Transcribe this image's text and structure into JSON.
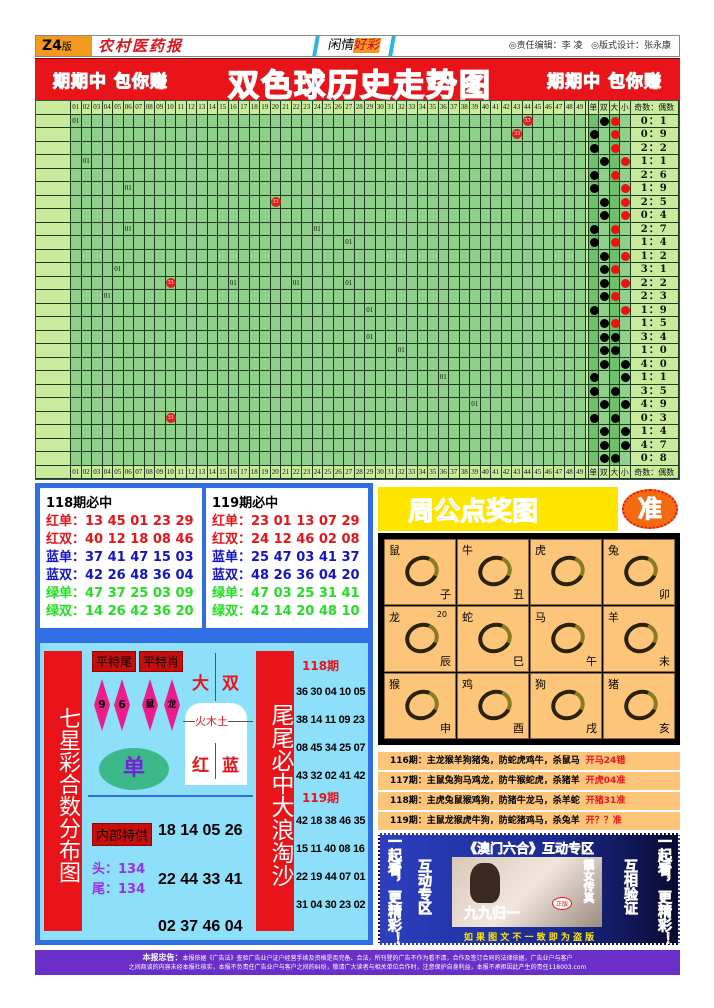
{
  "header": {
    "edition": "Z4",
    "edition_suffix": "版",
    "paper_name": "农村医药报",
    "column_a": "闲情",
    "column_b": "好彩",
    "editor": "◎责任编辑：李 凌",
    "designer": "◎版式设计：张永康"
  },
  "banner": {
    "left_slogan": "期期中 包你赚",
    "title": "双色球历史走势图",
    "right_slogan": "期期中 包你赚"
  },
  "colors": {
    "banner_red": "#e8141a",
    "title_blue": "#2a6fe0",
    "grid_green": "#8fd18a",
    "ball_red": "#e21b1b",
    "panel_blue": "#2f6fe3",
    "zodiac_bg": "#fdc57a",
    "footer_purple": "#6a2fc9"
  },
  "chart": {
    "number_headers": [
      "01",
      "02",
      "03",
      "04",
      "05",
      "06",
      "07",
      "08",
      "09",
      "10",
      "11",
      "12",
      "13",
      "14",
      "15",
      "16",
      "17",
      "18",
      "19",
      "20",
      "21",
      "22",
      "23",
      "24",
      "25",
      "26",
      "27",
      "28",
      "29",
      "30",
      "31",
      "32",
      "33",
      "34",
      "35",
      "36",
      "37",
      "38",
      "39",
      "40",
      "41",
      "42",
      "43",
      "44",
      "45",
      "46",
      "47",
      "48",
      "49"
    ],
    "attr_headers": [
      "单",
      "双",
      "大",
      "小"
    ],
    "ratio_header": "奇数：偶数",
    "rows": [
      {
        "marks": [
          {
            "col": 1,
            "text": "01",
            "type": "text"
          },
          {
            "col": 44,
            "text": "33",
            "type": "ball"
          }
        ],
        "attrs": [
          "",
          "black",
          "red",
          ""
        ],
        "ratio": "0：1"
      },
      {
        "marks": [
          {
            "col": 43,
            "text": "33",
            "type": "ball"
          }
        ],
        "attrs": [
          "black",
          "",
          "red",
          ""
        ],
        "ratio": "0：9"
      },
      {
        "marks": [],
        "attrs": [
          "black",
          "",
          "red",
          ""
        ],
        "ratio": "2：2"
      },
      {
        "marks": [
          {
            "col": 2,
            "text": "01",
            "type": "text"
          }
        ],
        "attrs": [
          "",
          "black",
          "",
          "red"
        ],
        "ratio": "1：1"
      },
      {
        "marks": [],
        "attrs": [
          "black",
          "",
          "red",
          ""
        ],
        "ratio": "2：6"
      },
      {
        "marks": [
          {
            "col": 6,
            "text": "01",
            "type": "text"
          }
        ],
        "attrs": [
          "black",
          "",
          "",
          "red"
        ],
        "ratio": "1：9"
      },
      {
        "marks": [
          {
            "col": 20,
            "text": "33",
            "type": "ball"
          }
        ],
        "attrs": [
          "",
          "black",
          "",
          "red"
        ],
        "ratio": "2：5"
      },
      {
        "marks": [],
        "attrs": [
          "",
          "black",
          "",
          "red"
        ],
        "ratio": "0：4"
      },
      {
        "marks": [
          {
            "col": 6,
            "text": "01",
            "type": "text"
          },
          {
            "col": 24,
            "text": "01",
            "type": "text"
          }
        ],
        "attrs": [
          "black",
          "",
          "red",
          ""
        ],
        "ratio": "2：7"
      },
      {
        "marks": [
          {
            "col": 27,
            "text": "01",
            "type": "text"
          }
        ],
        "attrs": [
          "black",
          "",
          "red",
          ""
        ],
        "ratio": "1：4"
      },
      {
        "marks": [],
        "attrs": [
          "",
          "black",
          "",
          "red"
        ],
        "ratio": "1：2"
      },
      {
        "marks": [
          {
            "col": 5,
            "text": "01",
            "type": "text"
          }
        ],
        "attrs": [
          "",
          "black",
          "red",
          ""
        ],
        "ratio": "3：1"
      },
      {
        "marks": [
          {
            "col": 10,
            "text": "33",
            "type": "ball"
          },
          {
            "col": 16,
            "text": "01",
            "type": "text"
          },
          {
            "col": 22,
            "text": "01",
            "type": "text"
          },
          {
            "col": 27,
            "text": "01",
            "type": "text"
          }
        ],
        "attrs": [
          "",
          "black",
          "",
          "red"
        ],
        "ratio": "2：2"
      },
      {
        "marks": [
          {
            "col": 4,
            "text": "01",
            "type": "text"
          }
        ],
        "attrs": [
          "",
          "black",
          "red",
          ""
        ],
        "ratio": "2：3"
      },
      {
        "marks": [
          {
            "col": 29,
            "text": "01",
            "type": "text"
          }
        ],
        "attrs": [
          "black",
          "",
          "",
          "red"
        ],
        "ratio": "1：9"
      },
      {
        "marks": [],
        "attrs": [
          "",
          "black",
          "red",
          ""
        ],
        "ratio": "1：5"
      },
      {
        "marks": [
          {
            "col": 29,
            "text": "01",
            "type": "text"
          }
        ],
        "attrs": [
          "",
          "black",
          "black",
          ""
        ],
        "ratio": "3：4"
      },
      {
        "marks": [
          {
            "col": 32,
            "text": "01",
            "type": "text"
          }
        ],
        "attrs": [
          "",
          "black",
          "black",
          ""
        ],
        "ratio": "1：0"
      },
      {
        "marks": [],
        "attrs": [
          "",
          "black",
          "",
          "black"
        ],
        "ratio": "4：0"
      },
      {
        "marks": [
          {
            "col": 36,
            "text": "01",
            "type": "text"
          }
        ],
        "attrs": [
          "black",
          "",
          "",
          "black"
        ],
        "ratio": "1：1"
      },
      {
        "marks": [],
        "attrs": [
          "black",
          "",
          "black",
          ""
        ],
        "ratio": "3：5"
      },
      {
        "marks": [
          {
            "col": 39,
            "text": "01",
            "type": "text"
          }
        ],
        "attrs": [
          "",
          "black",
          "",
          "black"
        ],
        "ratio": "4：9"
      },
      {
        "marks": [
          {
            "col": 10,
            "text": "33",
            "type": "ball"
          }
        ],
        "attrs": [
          "black",
          "",
          "black",
          ""
        ],
        "ratio": "0：3"
      },
      {
        "marks": [],
        "attrs": [
          "",
          "black",
          "",
          "black"
        ],
        "ratio": "1：4"
      },
      {
        "marks": [],
        "attrs": [
          "",
          "black",
          "",
          "black"
        ],
        "ratio": "4：7"
      },
      {
        "marks": [],
        "attrs": [
          "",
          "black",
          "black",
          ""
        ],
        "ratio": "0：8"
      }
    ]
  },
  "picks": [
    {
      "title": "118期必中",
      "rows": [
        {
          "label": "红单：",
          "nums": "13 45 01 23 29",
          "color": "#e8141a"
        },
        {
          "label": "红双：",
          "nums": "40 12 18 08 46",
          "color": "#e8141a"
        },
        {
          "label": "蓝单：",
          "nums": "37 41 47 15 03",
          "color": "#1414c8"
        },
        {
          "label": "蓝双：",
          "nums": "42 26 48 36 04",
          "color": "#1414c8"
        },
        {
          "label": "绿单：",
          "nums": "47 37 25 03 09",
          "color": "#22e022"
        },
        {
          "label": "绿双：",
          "nums": "14 26 42 36 20",
          "color": "#22e022"
        }
      ]
    },
    {
      "title": "119期必中",
      "rows": [
        {
          "label": "红单：",
          "nums": "23 01 13 07 29",
          "color": "#e8141a"
        },
        {
          "label": "红双：",
          "nums": "24 12 46 02 08",
          "color": "#e8141a"
        },
        {
          "label": "蓝单：",
          "nums": "25 47 03 41 37",
          "color": "#1414c8"
        },
        {
          "label": "蓝双：",
          "nums": "48 26 36 04 20",
          "color": "#1414c8"
        },
        {
          "label": "绿单：",
          "nums": "47 03 25 31 41",
          "color": "#22e022"
        },
        {
          "label": "绿双：",
          "nums": "42 14 20 48 10",
          "color": "#22e022"
        }
      ]
    }
  ],
  "qixing": {
    "title": "七星彩合数分布图",
    "tag_tail": "平特尾",
    "tag_zodiac": "平特肖",
    "tails": [
      "9",
      "6"
    ],
    "zodiacs": [
      "鼠",
      "龙"
    ],
    "big": "大",
    "double": "双",
    "elements": "火木土",
    "red": "红",
    "blue": "蓝",
    "single": "单",
    "inside_tag": "内部特供",
    "inside_nums": "18 14 05 26",
    "head_label": "头：",
    "head_val": "134",
    "tail_label": "尾：",
    "tail_val": "134",
    "nums2": "22 44 33 41",
    "nums3": "02 37 46 04"
  },
  "weiwei": {
    "title": "尾尾必中大浪淘沙",
    "p118": "118期",
    "p118_rows": [
      "36 30 04 10 05",
      "38 14 11 09 23",
      "08 45 34 25 07",
      "43 32 02 41 42"
    ],
    "p119": "119期",
    "p119_rows": [
      "42 18 38 46 35",
      "15 11 40 08 16",
      "22 19 44 07 01",
      "31 04 30 23 02"
    ]
  },
  "zhougong": {
    "title": "周公点奖图",
    "badge": "准",
    "cells": [
      {
        "name": "鼠",
        "branch": "子",
        "num": ""
      },
      {
        "name": "牛",
        "branch": "丑",
        "num": ""
      },
      {
        "name": "虎",
        "branch": "",
        "num": ""
      },
      {
        "name": "兔",
        "branch": "卯",
        "num": ""
      },
      {
        "name": "龙",
        "branch": "辰",
        "num": "20"
      },
      {
        "name": "蛇",
        "branch": "巳",
        "num": ""
      },
      {
        "name": "马",
        "branch": "午",
        "num": ""
      },
      {
        "name": "羊",
        "branch": "未",
        "num": ""
      },
      {
        "name": "猴",
        "branch": "申",
        "num": ""
      },
      {
        "name": "鸡",
        "branch": "酉",
        "num": ""
      },
      {
        "name": "狗",
        "branch": "戌",
        "num": ""
      },
      {
        "name": "猪",
        "branch": "亥",
        "num": ""
      }
    ]
  },
  "predictions": [
    {
      "text": "116期：主龙猴羊狗猪兔，防蛇虎鸡牛，杀鼠马",
      "result": "开马24错"
    },
    {
      "text": "117期：主鼠兔狗马鸡龙，防牛猴蛇虎，杀猪羊",
      "result": "开虎04准"
    },
    {
      "text": "118期：主虎兔鼠猴鸡狗，防猪牛龙马，杀羊蛇",
      "result": "开猪31准"
    },
    {
      "text": "119期：主鼠龙猴虎牛狗，防蛇猪鸡马，杀兔羊",
      "result": "开？？准"
    }
  ],
  "ad": {
    "title": "《澳门六合》互动专区",
    "left_outer": "一起看，更精彩！",
    "left_inner": "互动专区",
    "right_inner": "互相验证",
    "right_outer": "一起看，更精彩！",
    "photo_caption": "靓女传真",
    "brand": "九九归一",
    "stamp": "正版",
    "footer": "如 果 图 文 不 一 致 即 为 盗 版"
  },
  "footer": {
    "lead": "本报忠告：",
    "line1": "本报依据《广告法》查验广告业户证户经营手续及资格是否完备、合法，所刊登的广告不作为看不清，合作及签订合同的法律依据，广告业户与客户",
    "line2": "之间商谈的内容未经本报社核实，本报不负责任广告业户与客户之间的纠纷，敬请广大读者与相关单位合作时，注意保护自身利益，本报不承担因此产生的责任118003.com"
  }
}
